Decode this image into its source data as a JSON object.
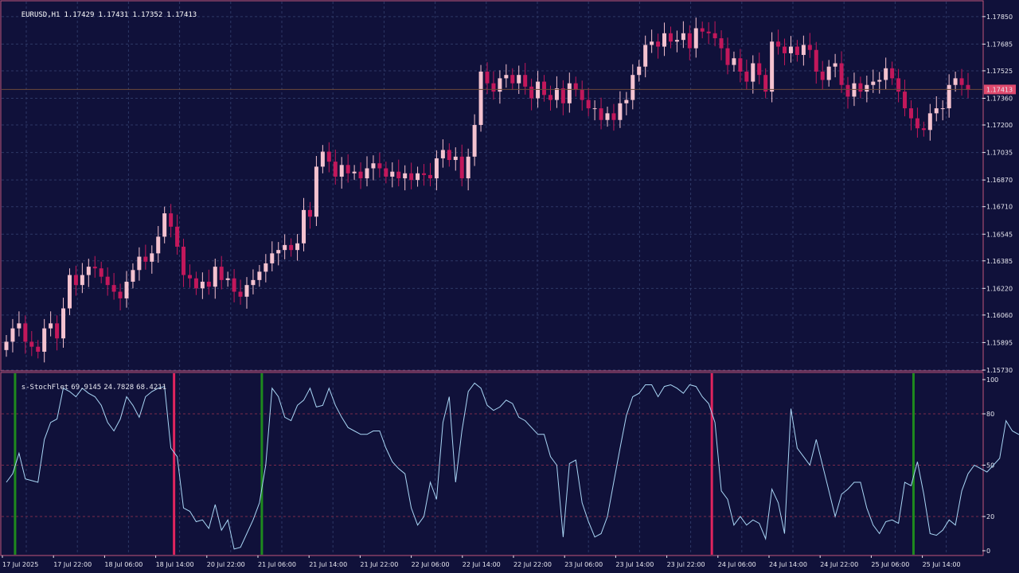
{
  "header": {
    "symbol": "EURUSD,H1",
    "open": "1.17429",
    "high": "1.17431",
    "low": "1.17352",
    "close": "1.17413"
  },
  "indicator_header": {
    "name": "s-StochFlet",
    "v1": "69.9145",
    "v2": "24.7828",
    "v3": "68.4211"
  },
  "colors": {
    "background": "#10113a",
    "frame": "#c0557a",
    "bull": "#f4c2cf",
    "bear": "#c2185b",
    "grid": "#2e3866",
    "stoch_line": "#a9d6f5",
    "buy_marker": "#1e8a1e",
    "sell_marker": "#e0245e",
    "price_tag": "#e04a6e"
  },
  "chart_data": [
    {
      "type": "candlestick",
      "symbol": "EURUSD",
      "timeframe": "H1",
      "ylim": [
        1.1573,
        1.1794
      ],
      "y_ticks": [
        "1.17850",
        "1.17685",
        "1.17525",
        "1.17360",
        "1.17200",
        "1.17035",
        "1.16870",
        "1.16710",
        "1.16545",
        "1.16385",
        "1.16220",
        "1.16060",
        "1.15895",
        "1.15730"
      ],
      "current_price": "1.17413",
      "x_ticks": [
        "17 Jul 2025",
        "17 Jul 22:00",
        "18 Jul 06:00",
        "18 Jul 14:00",
        "20 Jul 22:00",
        "21 Jul 06:00",
        "21 Jul 14:00",
        "21 Jul 22:00",
        "22 Jul 06:00",
        "22 Jul 14:00",
        "22 Jul 22:00",
        "23 Jul 06:00",
        "23 Jul 14:00",
        "23 Jul 22:00",
        "24 Jul 06:00",
        "24 Jul 14:00",
        "24 Jul 22:00",
        "25 Jul 06:00",
        "25 Jul 14:00"
      ],
      "close": [
        1.159,
        1.1598,
        1.1601,
        1.159,
        1.1587,
        1.1584,
        1.1598,
        1.1601,
        1.1592,
        1.161,
        1.163,
        1.1624,
        1.163,
        1.1635,
        1.1634,
        1.1629,
        1.1624,
        1.162,
        1.1616,
        1.1626,
        1.1633,
        1.1641,
        1.1638,
        1.1643,
        1.1653,
        1.1667,
        1.1659,
        1.1647,
        1.163,
        1.1628,
        1.1622,
        1.1626,
        1.1623,
        1.1635,
        1.1627,
        1.1628,
        1.162,
        1.1617,
        1.1624,
        1.1627,
        1.1632,
        1.1637,
        1.1643,
        1.1645,
        1.1648,
        1.1645,
        1.1649,
        1.1669,
        1.1665,
        1.1695,
        1.1704,
        1.1698,
        1.1689,
        1.1696,
        1.1691,
        1.1692,
        1.1688,
        1.1694,
        1.1697,
        1.1694,
        1.1689,
        1.1692,
        1.1688,
        1.1691,
        1.1687,
        1.1691,
        1.169,
        1.1688,
        1.17,
        1.1705,
        1.1699,
        1.1701,
        1.1688,
        1.1701,
        1.172,
        1.1752,
        1.1745,
        1.174,
        1.1748,
        1.175,
        1.1745,
        1.175,
        1.1743,
        1.1736,
        1.1746,
        1.1738,
        1.1735,
        1.1742,
        1.1733,
        1.1745,
        1.1741,
        1.1735,
        1.173,
        1.173,
        1.1723,
        1.1727,
        1.1723,
        1.1733,
        1.1735,
        1.175,
        1.1755,
        1.1768,
        1.177,
        1.1767,
        1.1775,
        1.177,
        1.1771,
        1.1775,
        1.1766,
        1.1778,
        1.1776,
        1.1775,
        1.1772,
        1.1766,
        1.1756,
        1.176,
        1.1752,
        1.1746,
        1.1757,
        1.175,
        1.174,
        1.177,
        1.1767,
        1.1763,
        1.1767,
        1.1762,
        1.1768,
        1.1765,
        1.1752,
        1.1747,
        1.1755,
        1.1757,
        1.1744,
        1.1737,
        1.1745,
        1.174,
        1.1744,
        1.1746,
        1.1747,
        1.1754,
        1.1748,
        1.174,
        1.173,
        1.1724,
        1.1718,
        1.1717,
        1.1727,
        1.173,
        1.173,
        1.1744,
        1.1748,
        1.1744,
        1.1741
      ],
      "open": [
        1.1585,
        1.159,
        1.1598,
        1.1601,
        1.159,
        1.1587,
        1.1584,
        1.1598,
        1.1601,
        1.1592,
        1.161,
        1.163,
        1.1624,
        1.163,
        1.1635,
        1.1634,
        1.1629,
        1.1624,
        1.162,
        1.1616,
        1.1626,
        1.1633,
        1.1641,
        1.1638,
        1.1643,
        1.1653,
        1.1667,
        1.1659,
        1.1647,
        1.163,
        1.1628,
        1.1622,
        1.1626,
        1.1623,
        1.1635,
        1.1627,
        1.1628,
        1.162,
        1.1617,
        1.1624,
        1.1627,
        1.1632,
        1.1637,
        1.1643,
        1.1645,
        1.1648,
        1.1645,
        1.1649,
        1.1669,
        1.1665,
        1.1695,
        1.1704,
        1.1698,
        1.1689,
        1.1696,
        1.1691,
        1.1692,
        1.1688,
        1.1694,
        1.1697,
        1.1694,
        1.1689,
        1.1692,
        1.1688,
        1.1691,
        1.1687,
        1.1691,
        1.169,
        1.1688,
        1.17,
        1.1705,
        1.1699,
        1.1701,
        1.1688,
        1.1701,
        1.172,
        1.1752,
        1.1745,
        1.174,
        1.1748,
        1.175,
        1.1745,
        1.175,
        1.1743,
        1.1736,
        1.1746,
        1.1738,
        1.1735,
        1.1742,
        1.1733,
        1.1745,
        1.1741,
        1.1735,
        1.173,
        1.173,
        1.1723,
        1.1727,
        1.1723,
        1.1733,
        1.1735,
        1.175,
        1.1755,
        1.1768,
        1.177,
        1.1767,
        1.1775,
        1.177,
        1.1771,
        1.1775,
        1.1766,
        1.1778,
        1.1776,
        1.1775,
        1.1772,
        1.1766,
        1.1756,
        1.176,
        1.1752,
        1.1746,
        1.1757,
        1.175,
        1.174,
        1.177,
        1.1767,
        1.1763,
        1.1767,
        1.1762,
        1.1768,
        1.1765,
        1.1752,
        1.1747,
        1.1755,
        1.1757,
        1.1744,
        1.1737,
        1.1745,
        1.174,
        1.1744,
        1.1746,
        1.1747,
        1.1754,
        1.1748,
        1.174,
        1.173,
        1.1724,
        1.1718,
        1.1717,
        1.1727,
        1.173,
        1.173,
        1.1744,
        1.1748,
        1.1744
      ]
    },
    {
      "type": "line",
      "name": "s-StochFlet",
      "ylim": [
        0,
        100
      ],
      "y_ticks": [
        "100",
        "80",
        "50",
        "20",
        "0"
      ],
      "values": [
        40,
        45,
        57,
        42,
        41,
        40,
        65,
        75,
        77,
        95,
        93,
        90,
        95,
        92,
        90,
        85,
        75,
        70,
        77,
        90,
        85,
        78,
        90,
        93,
        95,
        96,
        60,
        55,
        25,
        23,
        17,
        18,
        13,
        27,
        12,
        18,
        1,
        2,
        10,
        18,
        28,
        50,
        95,
        90,
        78,
        76,
        85,
        88,
        95,
        84,
        85,
        95,
        85,
        78,
        72,
        70,
        68,
        68,
        70,
        70,
        60,
        52,
        48,
        45,
        25,
        15,
        20,
        40,
        30,
        75,
        90,
        40,
        70,
        93,
        98,
        95,
        85,
        82,
        84,
        88,
        86,
        78,
        76,
        72,
        68,
        68,
        55,
        50,
        8,
        51,
        53,
        28,
        17,
        8,
        10,
        20,
        40,
        60,
        79,
        90,
        92,
        97,
        97,
        90,
        96,
        97,
        95,
        92,
        97,
        96,
        90,
        86,
        75,
        35,
        30,
        15,
        20,
        15,
        18,
        16,
        7,
        36,
        28,
        10,
        83,
        60,
        55,
        50,
        65,
        50,
        35,
        20,
        33,
        36,
        40,
        40,
        25,
        15,
        10,
        17,
        18,
        16,
        40,
        38,
        52,
        33,
        10,
        9,
        12,
        18,
        15,
        35,
        45,
        50,
        48,
        46,
        50,
        54,
        76,
        70,
        68,
        69
      ],
      "markers": [
        {
          "type": "buy",
          "index": 1
        },
        {
          "type": "sell",
          "index": 26
        },
        {
          "type": "buy",
          "index": 40
        },
        {
          "type": "sell",
          "index": 111
        },
        {
          "type": "buy",
          "index": 143
        }
      ]
    }
  ]
}
